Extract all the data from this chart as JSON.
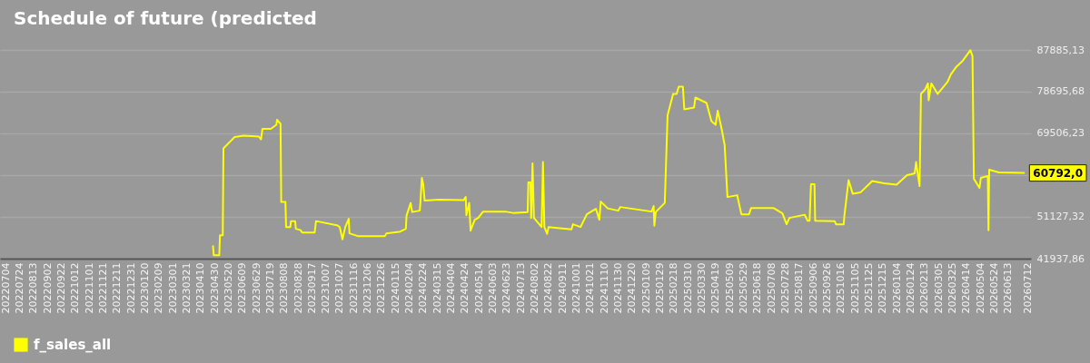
{
  "chart_data": {
    "type": "line",
    "title": "Schedule of future (predicted",
    "x": [
      "2023-04-28",
      "2023-04-29",
      "2023-05-07",
      "2023-05-08",
      "2023-05-12",
      "2023-05-13",
      "2023-05-29",
      "2023-06-11",
      "2023-07-03",
      "2023-07-06",
      "2023-07-08",
      "2023-07-20",
      "2023-07-28",
      "2023-07-29",
      "2023-08-03",
      "2023-08-04",
      "2023-08-10",
      "2023-08-11",
      "2023-08-17",
      "2023-08-18",
      "2023-08-24",
      "2023-08-25",
      "2023-09-01",
      "2023-09-03",
      "2023-09-21",
      "2023-09-23",
      "2023-10-23",
      "2023-10-27",
      "2023-10-31",
      "2023-11-04",
      "2023-11-09",
      "2023-11-10",
      "2023-11-22",
      "2023-12-31",
      "2024-01-02",
      "2024-01-22",
      "2024-01-30",
      "2024-01-31",
      "2024-02-06",
      "2024-02-08",
      "2024-02-19",
      "2024-02-20",
      "2024-02-22",
      "2024-02-24",
      "2024-02-26",
      "2024-03-18",
      "2024-04-22",
      "2024-04-25",
      "2024-04-26",
      "2024-04-30",
      "2024-05-02",
      "2024-05-08",
      "2024-05-13",
      "2024-05-20",
      "2024-06-21",
      "2024-07-02",
      "2024-07-23",
      "2024-07-24",
      "2024-07-27",
      "2024-07-28",
      "2024-07-30",
      "2024-08-01",
      "2024-08-12",
      "2024-08-14",
      "2024-08-16",
      "2024-08-20",
      "2024-08-22",
      "2024-09-24",
      "2024-09-26",
      "2024-10-07",
      "2024-10-16",
      "2024-10-29",
      "2024-11-03",
      "2024-11-05",
      "2024-11-15",
      "2024-11-30",
      "2024-12-03",
      "2025-01-17",
      "2025-01-20",
      "2025-01-21",
      "2025-01-23",
      "2025-02-05",
      "2025-02-09",
      "2025-02-17",
      "2025-02-22",
      "2025-02-25",
      "2025-03-03",
      "2025-03-05",
      "2025-03-19",
      "2025-03-21",
      "2025-04-06",
      "2025-04-13",
      "2025-04-19",
      "2025-04-22",
      "2025-04-28",
      "2025-05-02",
      "2025-05-06",
      "2025-05-20",
      "2025-05-26",
      "2025-06-06",
      "2025-06-09",
      "2025-07-11",
      "2025-07-24",
      "2025-07-30",
      "2025-08-03",
      "2025-08-25",
      "2025-08-29",
      "2025-09-01",
      "2025-09-03",
      "2025-09-08",
      "2025-09-09",
      "2025-10-07",
      "2025-10-09",
      "2025-10-20",
      "2025-10-21",
      "2025-10-27",
      "2025-11-02",
      "2025-11-13",
      "2025-11-30",
      "2025-12-17",
      "2026-01-04",
      "2026-01-19",
      "2026-01-25",
      "2026-01-30",
      "2026-02-01",
      "2026-02-06",
      "2026-02-08",
      "2026-02-14",
      "2026-02-18",
      "2026-02-19",
      "2026-02-23",
      "2026-03-04",
      "2026-03-18",
      "2026-03-23",
      "2026-03-31",
      "2026-04-09",
      "2026-04-20",
      "2026-04-23",
      "2026-04-25",
      "2026-05-03",
      "2026-05-05",
      "2026-05-15",
      "2026-05-16",
      "2026-05-17",
      "2026-05-31",
      "2026-07-06"
    ],
    "series": [
      {
        "name": "f_sales_all",
        "color": "#ffff00",
        "values": [
          44700,
          42700,
          42700,
          47100,
          47100,
          66200,
          68700,
          69000,
          68800,
          68200,
          70500,
          70500,
          71400,
          72500,
          71600,
          54400,
          54400,
          48900,
          48900,
          50200,
          50200,
          48500,
          48200,
          47700,
          47700,
          50200,
          49300,
          48900,
          46200,
          48900,
          50700,
          47500,
          46900,
          46900,
          47500,
          47900,
          48500,
          51400,
          54200,
          52200,
          52500,
          54500,
          59700,
          58300,
          54700,
          54900,
          54800,
          55500,
          51500,
          54200,
          48100,
          50500,
          50900,
          52300,
          52300,
          52000,
          52200,
          58700,
          58700,
          50900,
          62900,
          50900,
          48900,
          63200,
          48900,
          47400,
          48900,
          48400,
          49500,
          48900,
          51700,
          52900,
          50500,
          54500,
          53000,
          52500,
          53300,
          52300,
          53500,
          49200,
          52200,
          54200,
          73500,
          78200,
          78200,
          79800,
          79800,
          74800,
          75200,
          77400,
          76200,
          72200,
          71400,
          74500,
          70200,
          66900,
          55500,
          55900,
          51700,
          51700,
          53100,
          53100,
          51900,
          49500,
          50900,
          51600,
          50300,
          50300,
          58300,
          58300,
          50300,
          50200,
          49500,
          49500,
          51400,
          59200,
          56200,
          56500,
          59000,
          58500,
          58200,
          60300,
          60500,
          60700,
          63200,
          57900,
          78200,
          79200,
          80500,
          76800,
          80500,
          78200,
          80800,
          82500,
          84200,
          85500,
          87800,
          86500,
          59500,
          57500,
          59700,
          60100,
          48200,
          61500,
          60900,
          60792
        ]
      }
    ],
    "xlim": [
      "2022-06-26",
      "2026-07-16"
    ],
    "xticks": [
      {
        "value": "2022-07-04",
        "label": "20220704"
      },
      {
        "value": "2022-07-24",
        "label": "20220724"
      },
      {
        "value": "2022-08-13",
        "label": "20220813"
      },
      {
        "value": "2022-09-02",
        "label": "20220902"
      },
      {
        "value": "2022-09-22",
        "label": "20220922"
      },
      {
        "value": "2022-10-12",
        "label": "20221012"
      },
      {
        "value": "2022-11-01",
        "label": "20221101"
      },
      {
        "value": "2022-11-21",
        "label": "20221121"
      },
      {
        "value": "2022-12-11",
        "label": "20221211"
      },
      {
        "value": "2022-12-31",
        "label": "20221231"
      },
      {
        "value": "2023-01-20",
        "label": "20230120"
      },
      {
        "value": "2023-02-09",
        "label": "20230209"
      },
      {
        "value": "2023-03-01",
        "label": "20230301"
      },
      {
        "value": "2023-03-21",
        "label": "20230321"
      },
      {
        "value": "2023-04-10",
        "label": "20230410"
      },
      {
        "value": "2023-04-30",
        "label": "20230430"
      },
      {
        "value": "2023-05-20",
        "label": "20230520"
      },
      {
        "value": "2023-06-09",
        "label": "20230609"
      },
      {
        "value": "2023-06-29",
        "label": "20230629"
      },
      {
        "value": "2023-07-19",
        "label": "20230719"
      },
      {
        "value": "2023-08-08",
        "label": "20230808"
      },
      {
        "value": "2023-08-28",
        "label": "20230828"
      },
      {
        "value": "2023-09-17",
        "label": "20230917"
      },
      {
        "value": "2023-10-07",
        "label": "20231007"
      },
      {
        "value": "2023-10-27",
        "label": "20231027"
      },
      {
        "value": "2023-11-16",
        "label": "20231116"
      },
      {
        "value": "2023-12-06",
        "label": "20231206"
      },
      {
        "value": "2023-12-26",
        "label": "20231226"
      },
      {
        "value": "2024-01-15",
        "label": "20240115"
      },
      {
        "value": "2024-02-04",
        "label": "20240204"
      },
      {
        "value": "2024-02-24",
        "label": "20240224"
      },
      {
        "value": "2024-03-15",
        "label": "20240315"
      },
      {
        "value": "2024-04-04",
        "label": "20240404"
      },
      {
        "value": "2024-04-24",
        "label": "20240424"
      },
      {
        "value": "2024-05-14",
        "label": "20240514"
      },
      {
        "value": "2024-06-03",
        "label": "20240603"
      },
      {
        "value": "2024-06-23",
        "label": "20240623"
      },
      {
        "value": "2024-07-13",
        "label": "20240713"
      },
      {
        "value": "2024-08-02",
        "label": "20240802"
      },
      {
        "value": "2024-08-22",
        "label": "20240822"
      },
      {
        "value": "2024-09-11",
        "label": "20240911"
      },
      {
        "value": "2024-10-01",
        "label": "20241001"
      },
      {
        "value": "2024-10-21",
        "label": "20241021"
      },
      {
        "value": "2024-11-10",
        "label": "20241110"
      },
      {
        "value": "2024-11-30",
        "label": "20241130"
      },
      {
        "value": "2024-12-20",
        "label": "20241220"
      },
      {
        "value": "2025-01-09",
        "label": "20250109"
      },
      {
        "value": "2025-01-29",
        "label": "20250129"
      },
      {
        "value": "2025-02-18",
        "label": "20250218"
      },
      {
        "value": "2025-03-10",
        "label": "20250310"
      },
      {
        "value": "2025-03-30",
        "label": "20250330"
      },
      {
        "value": "2025-04-19",
        "label": "20250419"
      },
      {
        "value": "2025-05-09",
        "label": "20250509"
      },
      {
        "value": "2025-05-29",
        "label": "20250529"
      },
      {
        "value": "2025-06-18",
        "label": "20250618"
      },
      {
        "value": "2025-07-08",
        "label": "20250708"
      },
      {
        "value": "2025-07-28",
        "label": "20250728"
      },
      {
        "value": "2025-08-17",
        "label": "20250817"
      },
      {
        "value": "2025-09-06",
        "label": "20250906"
      },
      {
        "value": "2025-09-26",
        "label": "20250926"
      },
      {
        "value": "2025-10-16",
        "label": "20251016"
      },
      {
        "value": "2025-11-05",
        "label": "20251105"
      },
      {
        "value": "2025-11-25",
        "label": "20251125"
      },
      {
        "value": "2025-12-15",
        "label": "20251215"
      },
      {
        "value": "2026-01-04",
        "label": "20260104"
      },
      {
        "value": "2026-01-24",
        "label": "20260124"
      },
      {
        "value": "2026-02-13",
        "label": "20260213"
      },
      {
        "value": "2026-03-05",
        "label": "20260305"
      },
      {
        "value": "2026-03-25",
        "label": "20260325"
      },
      {
        "value": "2026-04-14",
        "label": "20260414"
      },
      {
        "value": "2026-05-04",
        "label": "20260504"
      },
      {
        "value": "2026-05-24",
        "label": "20260524"
      },
      {
        "value": "2026-06-13",
        "label": "20260613"
      },
      {
        "value": "2026-07-12",
        "label": "20260712"
      }
    ],
    "ylim": [
      41937.86,
      87885.13
    ],
    "yticks": [
      {
        "value": 41937.86,
        "label": "41937,86"
      },
      {
        "value": 51127.32,
        "label": "51127,32"
      },
      {
        "value": 60316.78,
        "label": null
      },
      {
        "value": 69506.23,
        "label": "69506,23"
      },
      {
        "value": 78695.68,
        "label": "78695,68"
      },
      {
        "value": 87885.13,
        "label": "87885,13"
      }
    ],
    "grid": "y",
    "legend": "bottom left",
    "annotations": [
      {
        "text": "60792,0",
        "x": "2026-07-06",
        "y": 60792
      }
    ]
  }
}
